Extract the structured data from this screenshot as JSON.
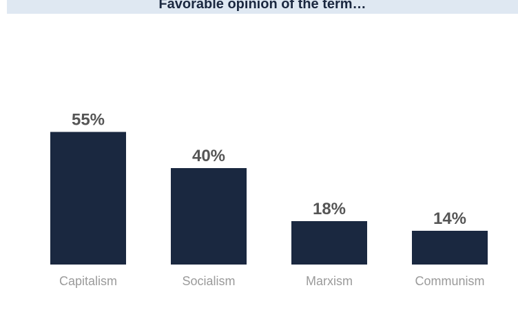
{
  "title": "Favorable opinion of the term…",
  "colors": {
    "bar": "#1a2840",
    "value_label": "#555555",
    "category_label": "#9a9a9a",
    "title_background": "#dfe8f2",
    "title_text": "#1b2840"
  },
  "chart_data": {
    "type": "bar",
    "title": "Favorable opinion of the term…",
    "categories": [
      "Capitalism",
      "Socialism",
      "Marxism",
      "Communism"
    ],
    "values": [
      55,
      40,
      18,
      14
    ],
    "value_labels": [
      "55%",
      "40%",
      "18%",
      "14%"
    ],
    "ylim": [
      0,
      100
    ],
    "grid": false,
    "legend": "none"
  }
}
